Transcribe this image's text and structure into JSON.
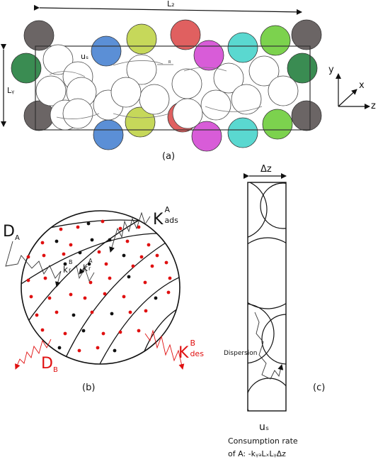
{
  "panel_a": {
    "caption": "(a)",
    "length_z_label": "L₂",
    "length_y_label": "Lᵧ",
    "velocity_label": "uₛ",
    "radius_label": "R",
    "axis_y": "y",
    "axis_x": "x",
    "axis_z": "z",
    "particle_colors": [
      "#6b6565",
      "#3a8c52",
      "#5b8fd6",
      "#c6d85a",
      "#e06060",
      "#d85cd8",
      "#5ad8d0",
      "#7cd24e"
    ]
  },
  "panel_b": {
    "caption": "(b)",
    "label_DA_main": "D",
    "label_DA_sub": "A",
    "label_DB_main": "D",
    "label_DB_sub": "B",
    "label_kads_main": "K",
    "label_kads_sup": "A",
    "label_kads_sub": "ads",
    "label_kdes_main": "K",
    "label_kdes_sup": "B",
    "label_kdes_sub": "des",
    "label_krB_main": "k",
    "label_krB_sup": "B",
    "label_krB_sub": "r",
    "label_krA_main": "k",
    "label_krA_sup": "A",
    "label_krA_sub": "r",
    "colors": {
      "species_A": "#111111",
      "species_B": "#e01010"
    }
  },
  "panel_c": {
    "caption": "(c)",
    "width_label": "Δz",
    "dispersion_label": "Dispersion",
    "velocity_label": "uₛ",
    "consumption_line1": "Consumption rate",
    "consumption_line2": "of A: -kᵧₐLₓLᵧΔz"
  }
}
